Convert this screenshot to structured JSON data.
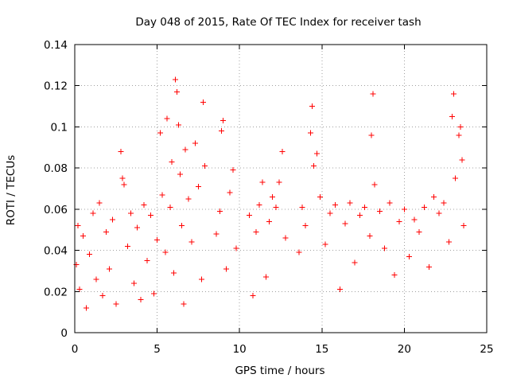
{
  "chart_data": {
    "type": "scatter",
    "title": "Day 048 of 2015, Rate Of TEC Index for receiver tash",
    "xlabel": "GPS time / hours",
    "ylabel": "ROTI / TECUs",
    "xlim": [
      0,
      25
    ],
    "ylim": [
      0,
      0.14
    ],
    "x_ticks": [
      0,
      5,
      10,
      15,
      20,
      25
    ],
    "y_ticks": [
      0,
      0.02,
      0.04,
      0.06,
      0.08,
      0.1,
      0.12,
      0.14
    ],
    "x_tick_labels": [
      "0",
      "5",
      "10",
      "15",
      "20",
      "25"
    ],
    "y_tick_labels": [
      "0",
      "0.02",
      "0.04",
      "0.06",
      "0.08",
      "0.1",
      "0.12",
      "0.14"
    ],
    "grid": true,
    "marker": "+",
    "color": "#ff0000",
    "data_gaps": [
      [
        8.1,
        8.5
      ],
      [
        10.0,
        10.5
      ],
      [
        13.0,
        13.5
      ]
    ],
    "series": [
      {
        "name": "ROTI",
        "points": [
          [
            0.1,
            0.033
          ],
          [
            0.2,
            0.052
          ],
          [
            0.3,
            0.021
          ],
          [
            0.5,
            0.047
          ],
          [
            0.7,
            0.012
          ],
          [
            0.9,
            0.038
          ],
          [
            1.1,
            0.058
          ],
          [
            1.3,
            0.026
          ],
          [
            1.5,
            0.063
          ],
          [
            1.7,
            0.018
          ],
          [
            1.9,
            0.049
          ],
          [
            2.1,
            0.031
          ],
          [
            2.3,
            0.055
          ],
          [
            2.5,
            0.014
          ],
          [
            2.8,
            0.088
          ],
          [
            2.9,
            0.075
          ],
          [
            3.0,
            0.072
          ],
          [
            3.2,
            0.042
          ],
          [
            3.4,
            0.058
          ],
          [
            3.6,
            0.024
          ],
          [
            3.8,
            0.051
          ],
          [
            4.0,
            0.016
          ],
          [
            4.2,
            0.062
          ],
          [
            4.4,
            0.035
          ],
          [
            4.6,
            0.057
          ],
          [
            4.8,
            0.019
          ],
          [
            5.0,
            0.045
          ],
          [
            5.2,
            0.097
          ],
          [
            5.3,
            0.067
          ],
          [
            5.5,
            0.039
          ],
          [
            5.6,
            0.104
          ],
          [
            5.8,
            0.061
          ],
          [
            5.9,
            0.083
          ],
          [
            6.0,
            0.029
          ],
          [
            6.1,
            0.123
          ],
          [
            6.2,
            0.117
          ],
          [
            6.3,
            0.101
          ],
          [
            6.4,
            0.077
          ],
          [
            6.5,
            0.052
          ],
          [
            6.6,
            0.014
          ],
          [
            6.7,
            0.089
          ],
          [
            6.9,
            0.065
          ],
          [
            7.1,
            0.044
          ],
          [
            7.3,
            0.092
          ],
          [
            7.5,
            0.071
          ],
          [
            7.7,
            0.026
          ],
          [
            7.8,
            0.112
          ],
          [
            7.9,
            0.081
          ],
          [
            8.6,
            0.048
          ],
          [
            8.8,
            0.059
          ],
          [
            8.9,
            0.098
          ],
          [
            9.0,
            0.103
          ],
          [
            9.2,
            0.031
          ],
          [
            9.4,
            0.068
          ],
          [
            9.6,
            0.079
          ],
          [
            9.8,
            0.041
          ],
          [
            10.6,
            0.057
          ],
          [
            10.8,
            0.018
          ],
          [
            11.0,
            0.049
          ],
          [
            11.2,
            0.062
          ],
          [
            11.4,
            0.073
          ],
          [
            11.6,
            0.027
          ],
          [
            11.8,
            0.054
          ],
          [
            12.0,
            0.066
          ],
          [
            12.2,
            0.061
          ],
          [
            12.4,
            0.073
          ],
          [
            12.6,
            0.088
          ],
          [
            12.8,
            0.046
          ],
          [
            13.6,
            0.039
          ],
          [
            13.8,
            0.061
          ],
          [
            14.0,
            0.052
          ],
          [
            14.3,
            0.097
          ],
          [
            14.4,
            0.11
          ],
          [
            14.5,
            0.081
          ],
          [
            14.7,
            0.087
          ],
          [
            14.9,
            0.066
          ],
          [
            15.2,
            0.043
          ],
          [
            15.5,
            0.058
          ],
          [
            15.8,
            0.062
          ],
          [
            16.1,
            0.021
          ],
          [
            16.4,
            0.053
          ],
          [
            16.7,
            0.063
          ],
          [
            17.0,
            0.034
          ],
          [
            17.3,
            0.057
          ],
          [
            17.6,
            0.061
          ],
          [
            17.9,
            0.047
          ],
          [
            18.0,
            0.096
          ],
          [
            18.1,
            0.116
          ],
          [
            18.2,
            0.072
          ],
          [
            18.5,
            0.059
          ],
          [
            18.8,
            0.041
          ],
          [
            19.1,
            0.063
          ],
          [
            19.4,
            0.028
          ],
          [
            19.7,
            0.054
          ],
          [
            20.0,
            0.06
          ],
          [
            20.3,
            0.037
          ],
          [
            20.6,
            0.055
          ],
          [
            20.9,
            0.049
          ],
          [
            21.2,
            0.061
          ],
          [
            21.5,
            0.032
          ],
          [
            21.8,
            0.066
          ],
          [
            22.1,
            0.058
          ],
          [
            22.4,
            0.063
          ],
          [
            22.7,
            0.044
          ],
          [
            22.9,
            0.105
          ],
          [
            23.0,
            0.116
          ],
          [
            23.1,
            0.075
          ],
          [
            23.3,
            0.096
          ],
          [
            23.4,
            0.1
          ],
          [
            23.5,
            0.084
          ],
          [
            23.6,
            0.052
          ]
        ]
      }
    ]
  }
}
